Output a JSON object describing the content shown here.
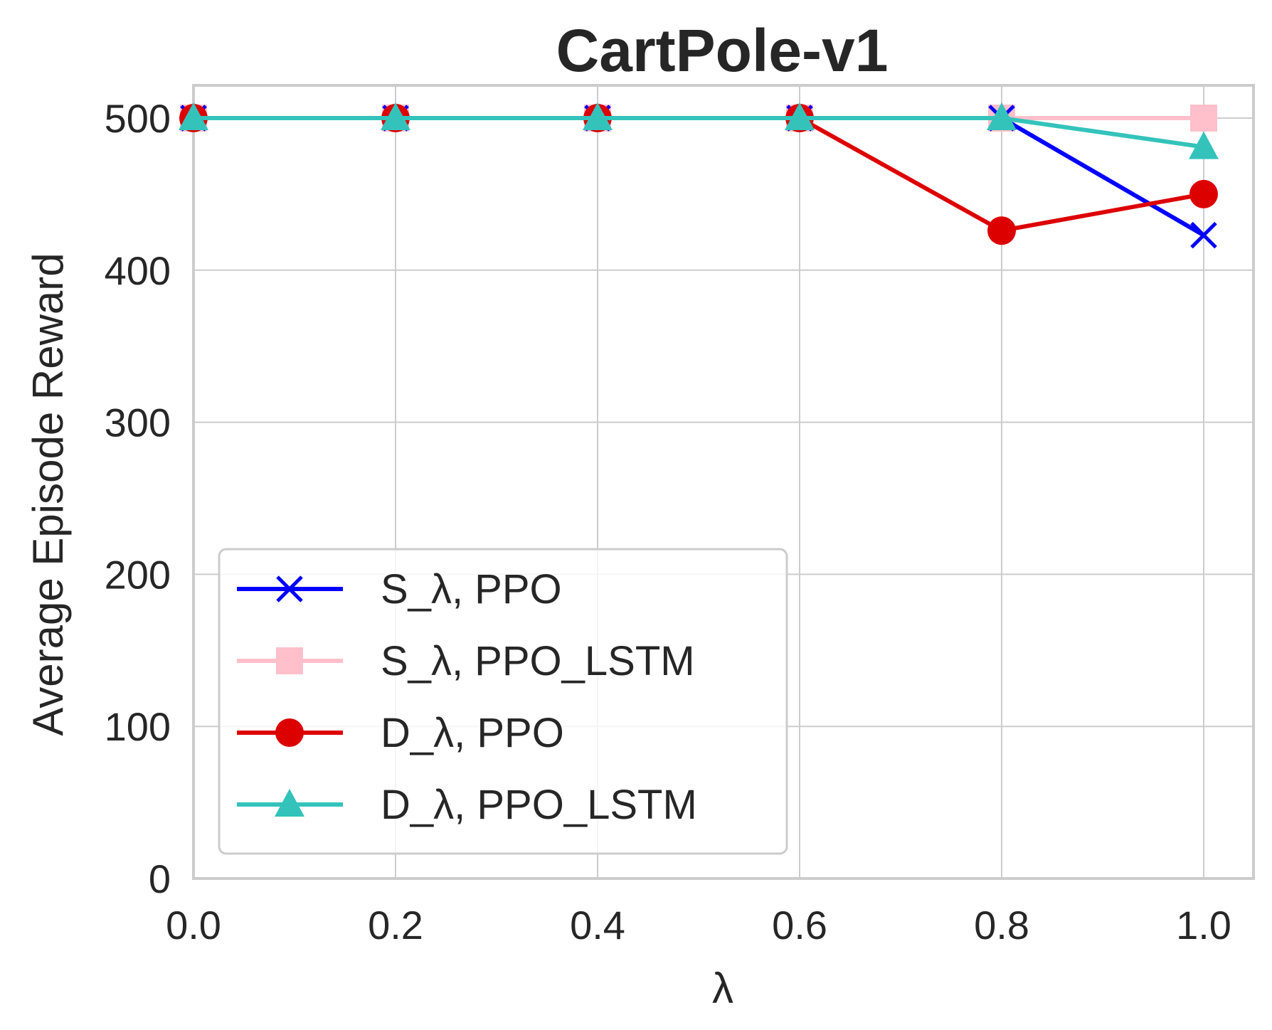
{
  "chart_data": {
    "type": "line",
    "title": "CartPole-v1",
    "xlabel": "λ",
    "ylabel": "Average Episode Reward",
    "x": [
      0.0,
      0.2,
      0.4,
      0.6,
      0.8,
      1.0
    ],
    "xlim": [
      0.0,
      1.05
    ],
    "ylim": [
      0,
      522
    ],
    "xticks": [
      "0.0",
      "0.2",
      "0.4",
      "0.6",
      "0.8",
      "1.0"
    ],
    "yticks": [
      "0",
      "100",
      "200",
      "300",
      "400",
      "500"
    ],
    "grid": true,
    "legend_position": "lower-left",
    "series": [
      {
        "name": "S_λ, PPO",
        "color": "#0000ff",
        "marker": "x",
        "values": [
          500,
          500,
          500,
          500,
          500,
          423
        ]
      },
      {
        "name": "S_λ, PPO_LSTM",
        "color": "#ffc0cb",
        "marker": "square",
        "values": [
          500,
          500,
          500,
          500,
          500,
          500
        ]
      },
      {
        "name": "D_λ, PPO",
        "color": "#dd0000",
        "marker": "circle",
        "values": [
          500,
          500,
          500,
          500,
          426,
          450
        ]
      },
      {
        "name": "D_λ, PPO_LSTM",
        "color": "#33c3bb",
        "marker": "triangle",
        "values": [
          500,
          500,
          500,
          500,
          500,
          481
        ]
      }
    ]
  }
}
